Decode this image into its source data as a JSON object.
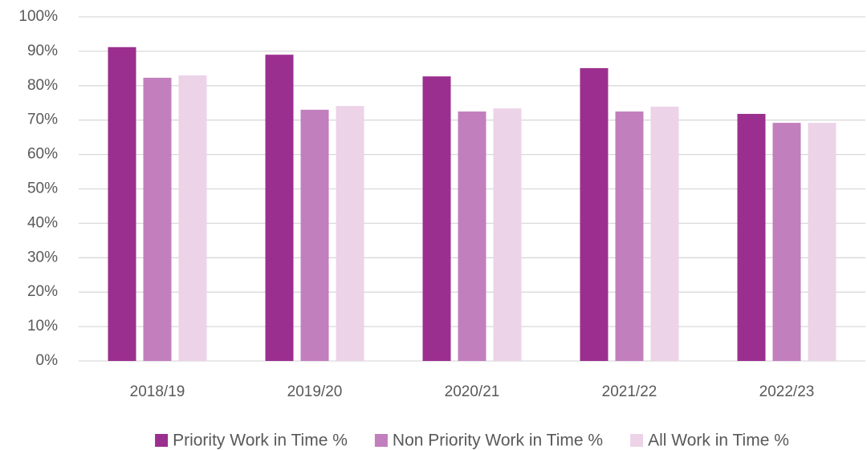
{
  "chart_data": {
    "type": "bar",
    "categories": [
      "2018/19",
      "2019/20",
      "2020/21",
      "2021/22",
      "2022/23"
    ],
    "series": [
      {
        "name": "Priority Work in Time %",
        "color": "#9b2f8f",
        "values": [
          91.2,
          89.0,
          82.7,
          85.1,
          71.8
        ]
      },
      {
        "name": "Non Priority Work in Time %",
        "color": "#c27fbd",
        "values": [
          82.3,
          73.0,
          72.5,
          72.5,
          69.2
        ]
      },
      {
        "name": "All Work in Time %",
        "color": "#ecd3e8",
        "values": [
          83.0,
          74.1,
          73.4,
          73.9,
          69.2
        ]
      }
    ],
    "ylim": [
      0,
      100
    ],
    "yticks": [
      {
        "value": 0,
        "label": "0%"
      },
      {
        "value": 10,
        "label": "10%"
      },
      {
        "value": 20,
        "label": "20%"
      },
      {
        "value": 30,
        "label": "30%"
      },
      {
        "value": 40,
        "label": "40%"
      },
      {
        "value": 50,
        "label": "50%"
      },
      {
        "value": 60,
        "label": "60%"
      },
      {
        "value": 70,
        "label": "70%"
      },
      {
        "value": 80,
        "label": "80%"
      },
      {
        "value": 90,
        "label": "90%"
      },
      {
        "value": 100,
        "label": "100%"
      }
    ],
    "grid": true,
    "legend": "bottom"
  }
}
